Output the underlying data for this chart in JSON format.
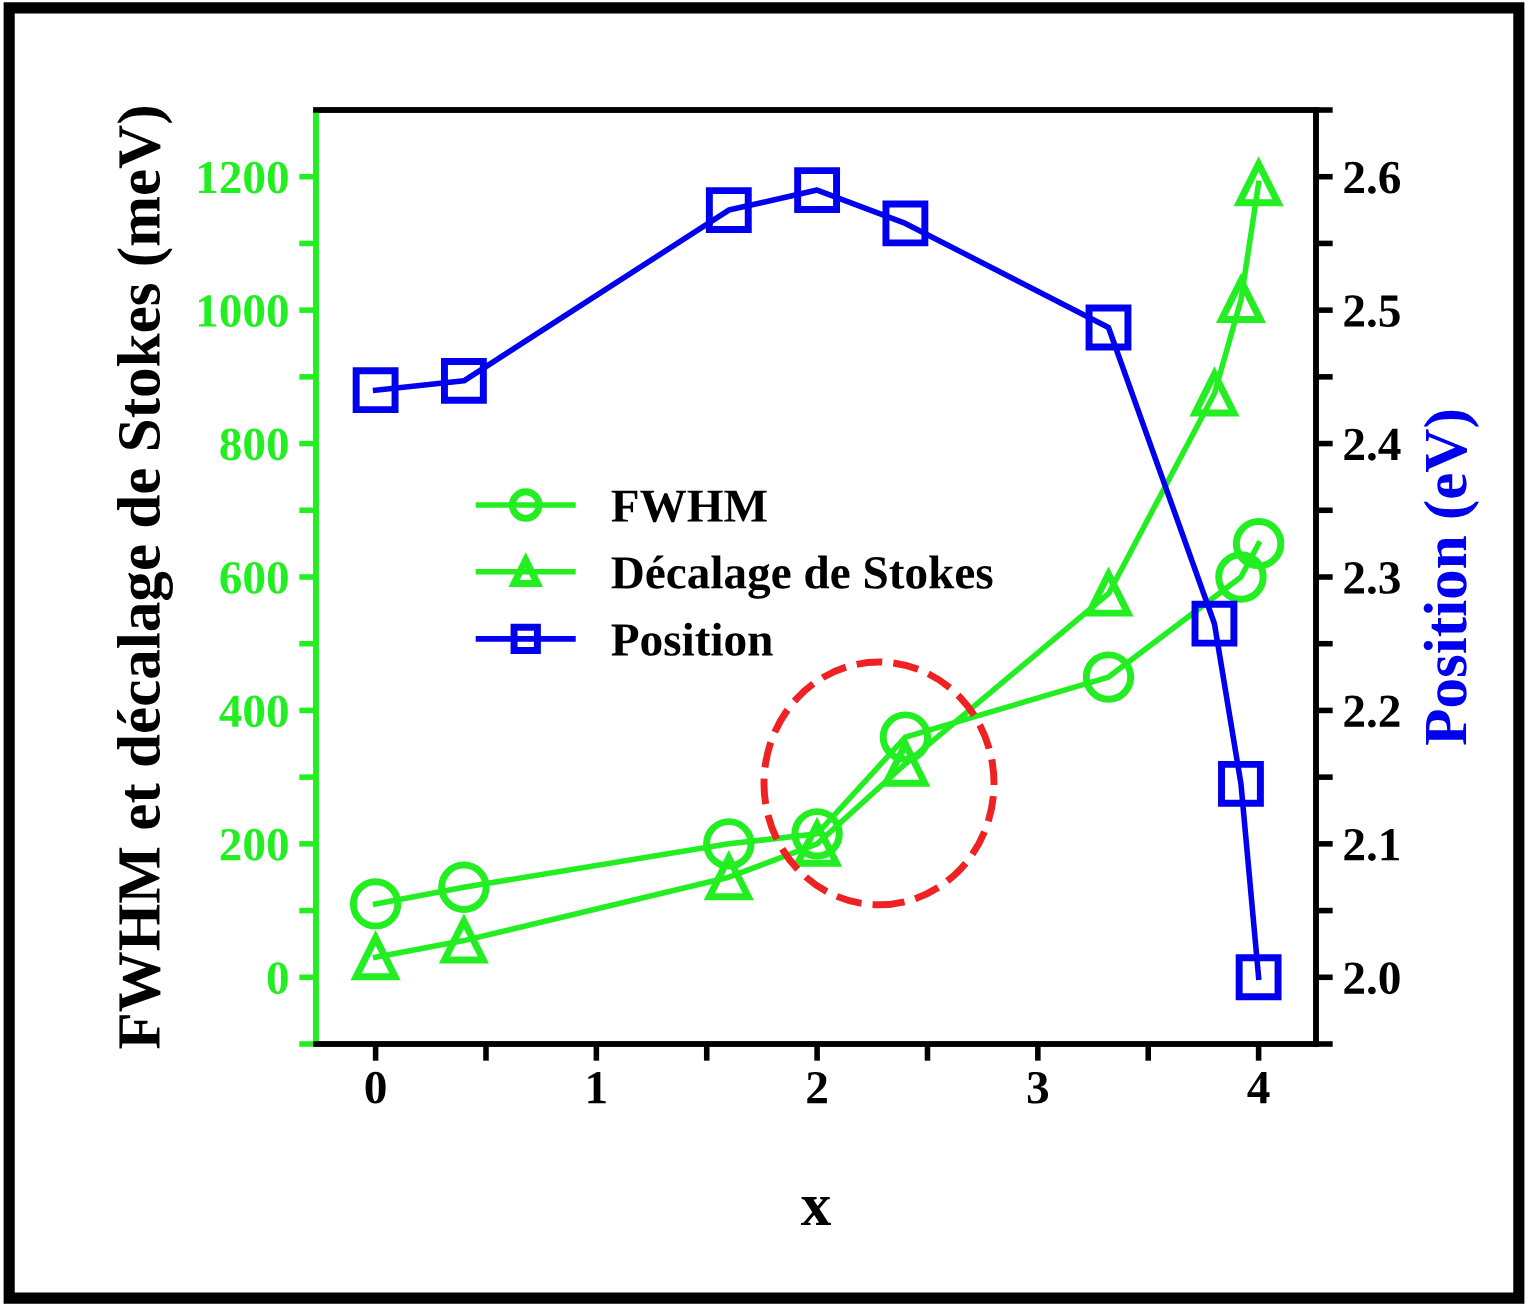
{
  "chart_data": {
    "type": "line",
    "xlabel": "x",
    "ylabel": "FWHM et décalage de Stokes (meV)",
    "y2label": "Position (eV)",
    "xlim": [
      -0.27,
      4.26
    ],
    "ylim": [
      -100,
      1300
    ],
    "y2lim": [
      1.95,
      2.65
    ],
    "xticks": [
      0,
      {
        "value": 0.5,
        "label": null
      },
      1,
      {
        "value": 1.5,
        "label": null
      },
      2,
      {
        "value": 2.5,
        "label": null
      },
      3,
      {
        "value": 3.5,
        "label": null
      },
      4
    ],
    "yticks": [
      {
        "value": -100,
        "label": null
      },
      0,
      {
        "value": 100,
        "label": null
      },
      200,
      {
        "value": 300,
        "label": null
      },
      400,
      {
        "value": 500,
        "label": null
      },
      600,
      {
        "value": 700,
        "label": null
      },
      800,
      {
        "value": 900,
        "label": null
      },
      1000,
      {
        "value": 1100,
        "label": null
      },
      1200
    ],
    "y2ticks": [
      {
        "value": 1.95,
        "label": null
      },
      {
        "value": 2.0,
        "label": "2.0"
      },
      {
        "value": 2.05,
        "label": null
      },
      2.1,
      {
        "value": 2.15,
        "label": null
      },
      2.2,
      {
        "value": 2.25,
        "label": null
      },
      2.3,
      {
        "value": 2.35,
        "label": null
      },
      2.4,
      {
        "value": 2.45,
        "label": null
      },
      2.5,
      {
        "value": 2.55,
        "label": null
      },
      2.6,
      {
        "value": 2.65,
        "label": null
      }
    ],
    "legend": "left",
    "grid": false,
    "line_style": "solid",
    "series": [
      {
        "name": "FWHM",
        "color": "#22ee22",
        "marker": "circle",
        "x": [
          0,
          0.4,
          1.6,
          2,
          2.4,
          3.32,
          3.92,
          4
        ],
        "values": [
          110,
          135,
          200,
          215,
          360,
          450,
          600,
          650
        ]
      },
      {
        "name": "Décalage de Stokes",
        "color": "#22ee22",
        "marker": "triangle",
        "x": [
          0,
          0.4,
          1.6,
          2,
          2.4,
          3.32,
          3.8,
          3.92,
          4
        ],
        "values": [
          30,
          55,
          150,
          200,
          320,
          575,
          875,
          1015,
          1190
        ]
      },
      {
        "name": "Position",
        "color": "#0000ee",
        "marker": "square",
        "axis": "y2",
        "x": [
          0,
          0.4,
          1.6,
          2,
          2.4,
          3.32,
          3.8,
          3.92,
          4
        ],
        "values": [
          2.44,
          2.447,
          2.575,
          2.59,
          2.565,
          2.487,
          2.265,
          2.145,
          2.0
        ]
      }
    ]
  }
}
